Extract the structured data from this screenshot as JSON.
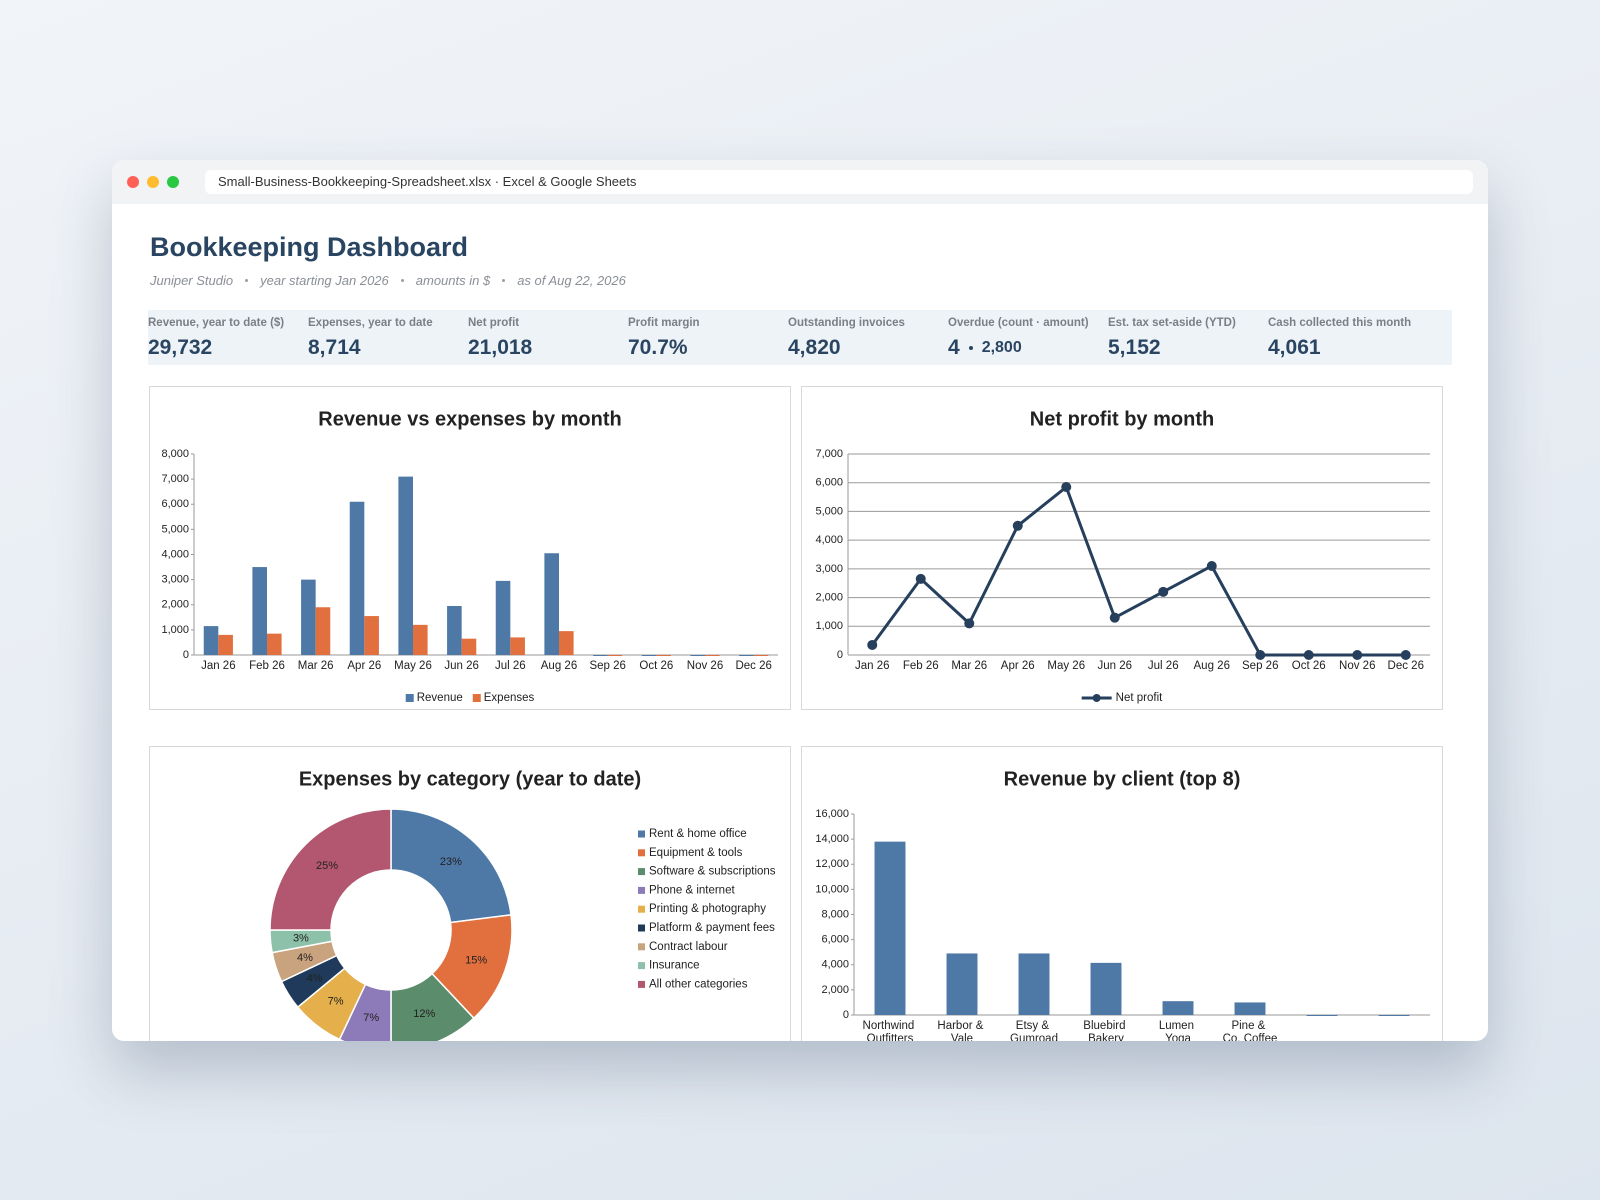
{
  "window": {
    "title": "Small-Business-Bookkeeping-Spreadsheet.xlsx · Excel & Google Sheets"
  },
  "header": {
    "title": "Bookkeeping Dashboard",
    "subtitle": [
      "Juniper Studio",
      "year starting Jan 2026",
      "amounts in $",
      "as of Aug 22, 2026"
    ]
  },
  "kpis": [
    {
      "label": "Revenue, year to date ($)",
      "value": "29,732"
    },
    {
      "label": "Expenses, year to date",
      "value": "8,714"
    },
    {
      "label": "Net profit",
      "value": "21,018"
    },
    {
      "label": "Profit margin",
      "value": "70.7%"
    },
    {
      "label": "Outstanding invoices",
      "value": "4,820"
    },
    {
      "label": "Overdue (count · amount)",
      "value": [
        "4",
        "2,800"
      ]
    },
    {
      "label": "Est. tax set-aside (YTD)",
      "value": "5,152"
    },
    {
      "label": "Cash collected this month",
      "value": "4,061"
    }
  ],
  "chart_data": [
    {
      "type": "bar",
      "title": "Revenue vs expenses by month",
      "categories": [
        "Jan 26",
        "Feb 26",
        "Mar 26",
        "Apr 26",
        "May 26",
        "Jun 26",
        "Jul 26",
        "Aug 26",
        "Sep 26",
        "Oct 26",
        "Nov 26",
        "Dec 26"
      ],
      "series": [
        {
          "name": "Revenue",
          "color": "#4e79a7",
          "values": [
            1150,
            3500,
            3000,
            6100,
            7100,
            1950,
            2950,
            4050,
            0,
            0,
            0,
            0
          ]
        },
        {
          "name": "Expenses",
          "color": "#e2703f",
          "values": [
            800,
            850,
            1900,
            1550,
            1200,
            650,
            700,
            950,
            0,
            0,
            0,
            0
          ]
        }
      ],
      "ylim": [
        0,
        8000
      ],
      "yticks": [
        0,
        {
          "value": 1000,
          "label": "1,000"
        },
        {
          "value": 2000,
          "label": "2,000"
        },
        {
          "value": 3000,
          "label": "3,000"
        },
        {
          "value": 4000,
          "label": "4,000"
        },
        {
          "value": 5000,
          "label": "5,000"
        },
        {
          "value": 6000,
          "label": "6,000"
        },
        {
          "value": 7000,
          "label": "7,000"
        },
        {
          "value": 8000,
          "label": "8,000"
        }
      ],
      "grid": false,
      "legend": "bottom"
    },
    {
      "type": "line",
      "title": "Net profit by month",
      "categories": [
        "Jan 26",
        "Feb 26",
        "Mar 26",
        "Apr 26",
        "May 26",
        "Jun 26",
        "Jul 26",
        "Aug 26",
        "Sep 26",
        "Oct 26",
        "Nov 26",
        "Dec 26"
      ],
      "series": [
        {
          "name": "Net profit",
          "color": "#263f5c",
          "values": [
            350,
            2650,
            1100,
            4500,
            5850,
            1300,
            2200,
            3100,
            0,
            0,
            0,
            0
          ]
        }
      ],
      "ylim": [
        0,
        7000
      ],
      "yticks": [
        0,
        {
          "value": 1000,
          "label": "1,000"
        },
        {
          "value": 2000,
          "label": "2,000"
        },
        {
          "value": 3000,
          "label": "3,000"
        },
        {
          "value": 4000,
          "label": "4,000"
        },
        {
          "value": 5000,
          "label": "5,000"
        },
        {
          "value": 6000,
          "label": "6,000"
        },
        {
          "value": 7000,
          "label": "7,000"
        }
      ],
      "grid": true,
      "legend": "bottom"
    },
    {
      "type": "pie",
      "title": "Expenses by category (year to date)",
      "donut": true,
      "categories": [
        "Rent & home office",
        "Equipment & tools",
        "Software & subscriptions",
        "Phone & internet",
        "Printing & photography",
        "Platform & payment fees",
        "Contract labour",
        "Insurance",
        "All other categories"
      ],
      "values": [
        23,
        15,
        12,
        7,
        7,
        4,
        4,
        3,
        25
      ],
      "value_labels": [
        "23%",
        "15%",
        "12%",
        "7%",
        "7%",
        "4%",
        "4%",
        "3%",
        "25%"
      ],
      "colors": [
        "#4e79a7",
        "#e2703f",
        "#5b8c6b",
        "#8c7bb8",
        "#e5b04b",
        "#1f3a5a",
        "#c9a27e",
        "#8ec1a9",
        "#b3566f"
      ],
      "legend": "right"
    },
    {
      "type": "bar",
      "title": "Revenue by client (top 8)",
      "categories": [
        "Northwind Outfitters",
        "Harbor & Vale",
        "Etsy & Gumroad",
        "Bluebird Bakery",
        "Lumen Yoga",
        "Pine & Co. Coffee",
        null,
        null
      ],
      "values": [
        13800,
        4900,
        4900,
        4150,
        1100,
        1000,
        0,
        0
      ],
      "color": "#4e79a7",
      "ylim": [
        0,
        16000
      ],
      "yticks": [
        0,
        {
          "value": 2000,
          "label": "2,000"
        },
        {
          "value": 4000,
          "label": "4,000"
        },
        {
          "value": 6000,
          "label": "6,000"
        },
        {
          "value": 8000,
          "label": "8,000"
        },
        {
          "value": 10000,
          "label": "10,000"
        },
        {
          "value": 12000,
          "label": "12,000"
        },
        {
          "value": 14000,
          "label": "14,000"
        },
        {
          "value": 16000,
          "label": "16,000"
        }
      ],
      "grid": false
    }
  ]
}
